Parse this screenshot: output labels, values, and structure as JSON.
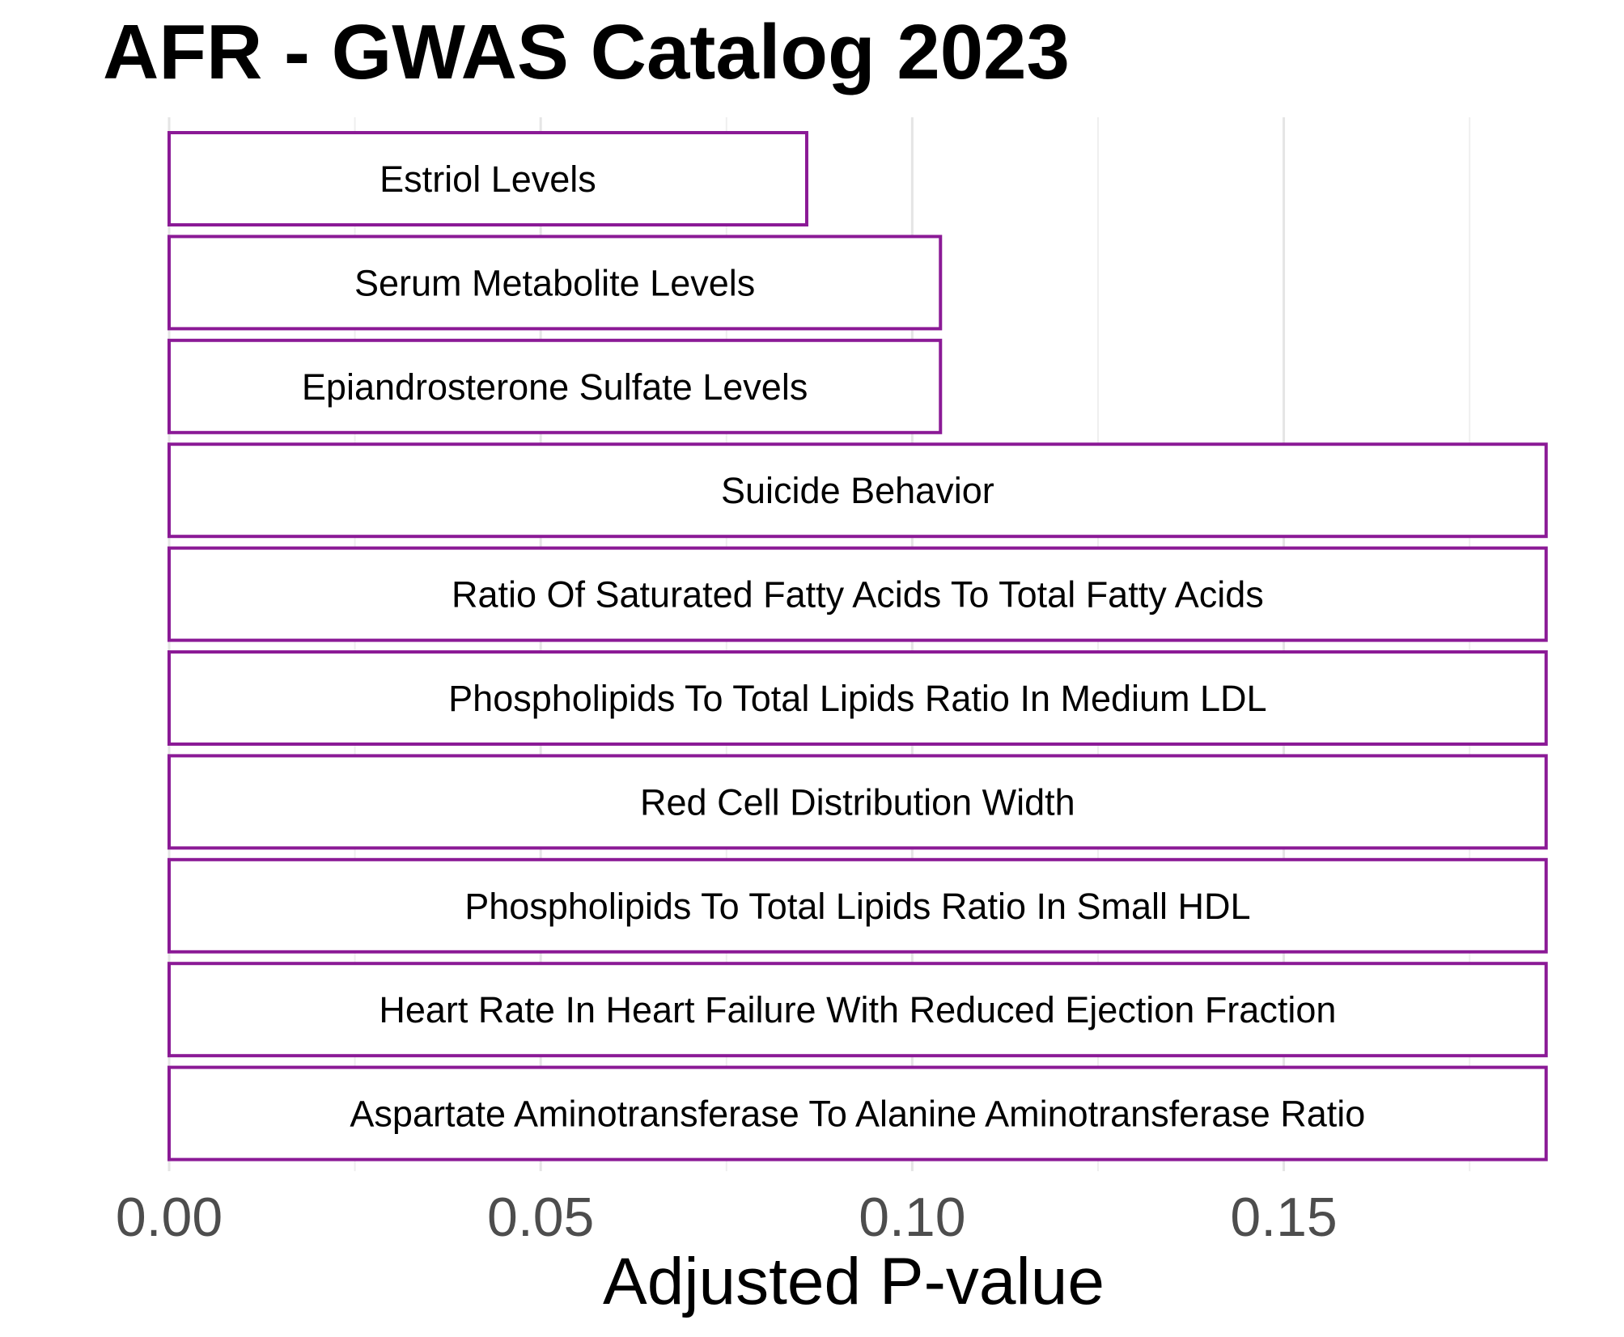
{
  "chart_data": {
    "type": "bar",
    "orientation": "horizontal",
    "title": "AFR  -  GWAS Catalog 2023",
    "xlabel": "Adjusted P-value",
    "ylabel": "",
    "xlim": [
      0,
      0.185
    ],
    "x_ticks": [
      0.0,
      0.05,
      0.1,
      0.15
    ],
    "x_tick_labels": [
      "0.00",
      "0.05",
      "0.10",
      "0.15"
    ],
    "grid": true,
    "bar_outline_color": "#8B1A96",
    "bar_fill_color": "#ffffff",
    "categories": [
      "Estriol Levels",
      "Serum Metabolite Levels",
      "Epiandrosterone Sulfate Levels",
      "Suicide Behavior",
      "Ratio Of Saturated Fatty Acids To Total Fatty Acids",
      "Phospholipids To Total Lipids Ratio In Medium LDL",
      "Red Cell Distribution Width",
      "Phospholipids To Total Lipids Ratio In Small HDL",
      "Heart Rate In Heart Failure With Reduced Ejection Fraction",
      "Aspartate Aminotransferase To Alanine Aminotransferase Ratio"
    ],
    "values": [
      0.0858,
      0.1038,
      0.1038,
      0.1853,
      0.1853,
      0.1853,
      0.1853,
      0.1853,
      0.1853,
      0.1853
    ]
  }
}
